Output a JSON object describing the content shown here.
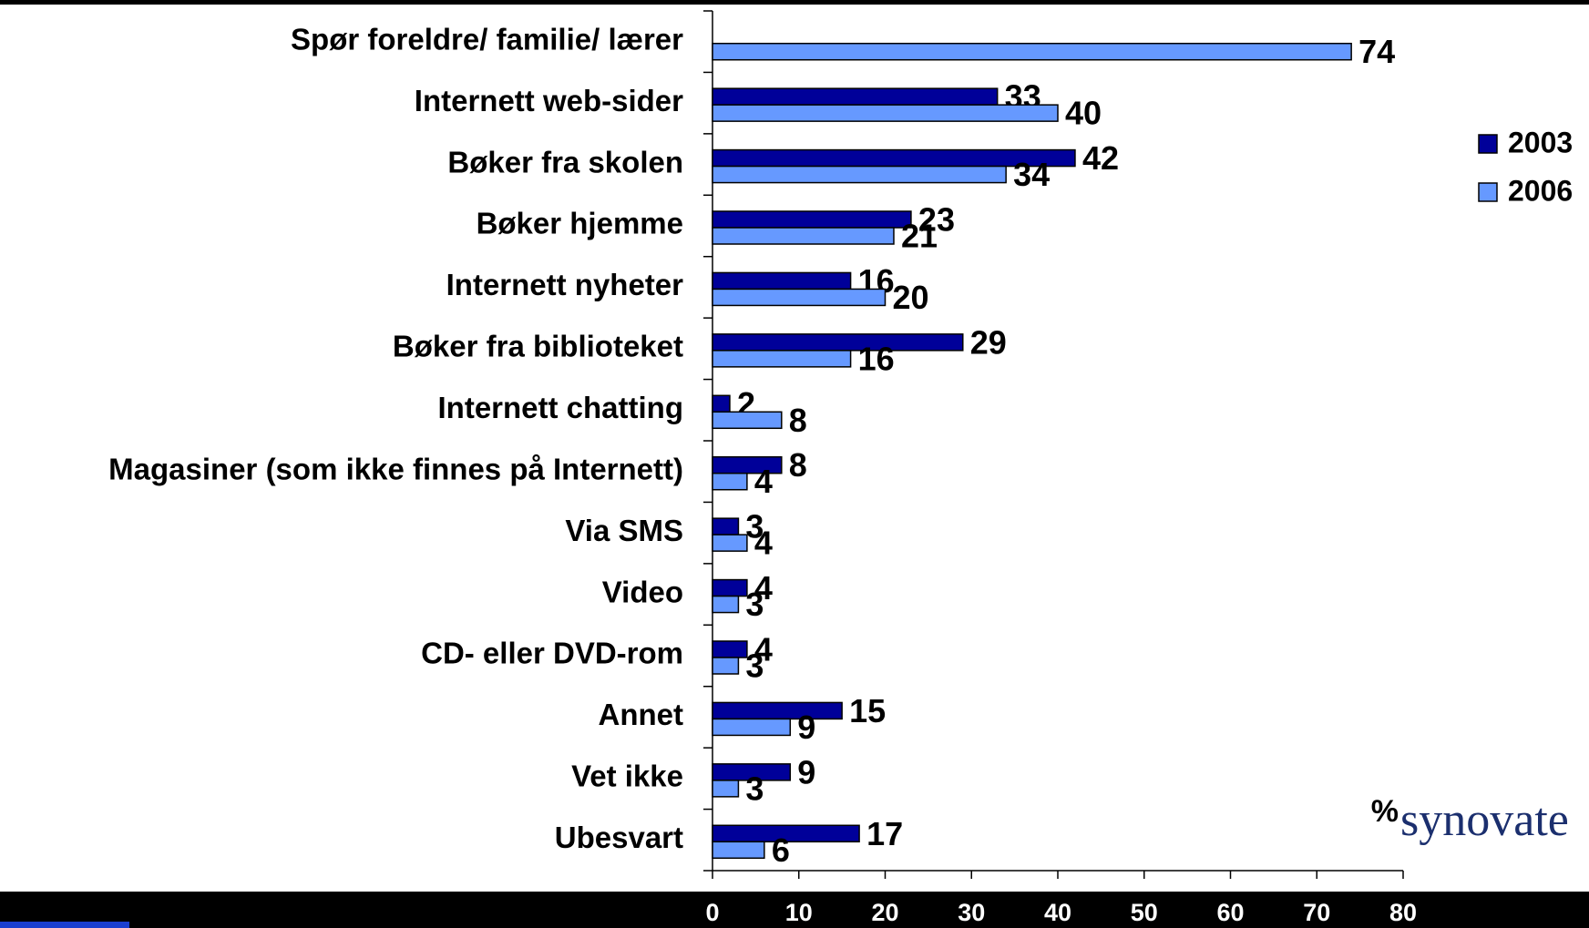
{
  "chart_data": {
    "type": "hbar",
    "categories": [
      "Spør foreldre/ familie/ lærer",
      "Internett web-sider",
      "Bøker fra skolen",
      "Bøker hjemme",
      "Internett nyheter",
      "Bøker fra biblioteket",
      "Internett chatting",
      "Magasiner (som ikke finnes på Internett)",
      "Via SMS",
      "Video",
      "CD- eller DVD-rom",
      "Annet",
      "Vet ikke",
      "Ubesvart"
    ],
    "series": [
      {
        "name": "2003",
        "color": "#000099",
        "values": [
          null,
          33,
          42,
          23,
          16,
          29,
          2,
          8,
          3,
          4,
          4,
          15,
          9,
          17
        ]
      },
      {
        "name": "2006",
        "color": "#6699ff",
        "values": [
          74,
          40,
          34,
          21,
          20,
          16,
          8,
          4,
          4,
          3,
          3,
          9,
          3,
          6
        ]
      }
    ],
    "xlim": [
      0,
      80
    ],
    "xticks": [
      0,
      10,
      20,
      30,
      40,
      50,
      60,
      70,
      80
    ],
    "unit_label": "%",
    "logo_text": "synovate"
  }
}
